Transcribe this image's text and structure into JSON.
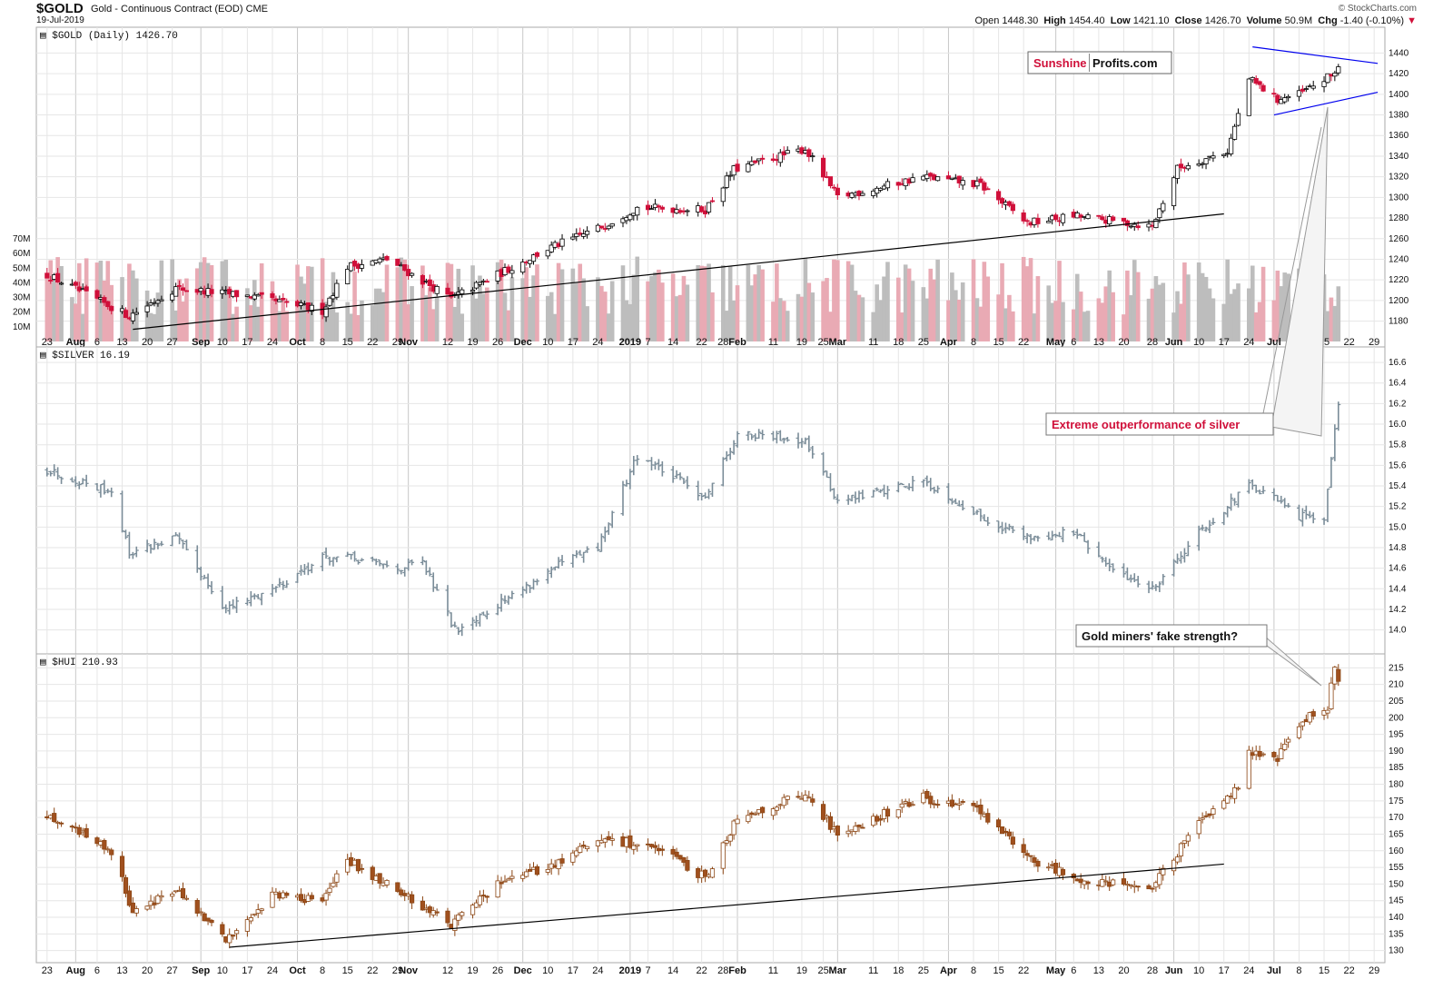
{
  "header": {
    "symbol": "$GOLD",
    "description": "Gold - Continuous Contract (EOD)  CME",
    "date": "19-Jul-2019",
    "brand": "© StockCharts.com",
    "open_label": "Open",
    "open": "1448.30",
    "high_label": "High",
    "high": "1454.40",
    "low_label": "Low",
    "low": "1421.10",
    "close_label": "Close",
    "close": "1426.70",
    "volume_label": "Volume",
    "volume": "50.9M",
    "chg_label": "Chg",
    "chg": "-1.40 (-0.10%)"
  },
  "logo": {
    "part1": "Sunshine",
    "part2": "Profits.com"
  },
  "annotations": {
    "silver": "Extreme outperformance of silver",
    "miners": "Gold miners' fake strength?"
  },
  "x_axis": {
    "labels": [
      {
        "t": "23",
        "bold": false
      },
      {
        "t": "Aug",
        "bold": true
      },
      {
        "t": "6",
        "bold": false
      },
      {
        "t": "13",
        "bold": false
      },
      {
        "t": "20",
        "bold": false
      },
      {
        "t": "27",
        "bold": false
      },
      {
        "t": "Sep",
        "bold": true
      },
      {
        "t": "10",
        "bold": false
      },
      {
        "t": "17",
        "bold": false
      },
      {
        "t": "24",
        "bold": false
      },
      {
        "t": "Oct",
        "bold": true
      },
      {
        "t": "8",
        "bold": false
      },
      {
        "t": "15",
        "bold": false
      },
      {
        "t": "22",
        "bold": false
      },
      {
        "t": "29",
        "bold": false
      },
      {
        "t": "Nov",
        "bold": true
      },
      {
        "t": "12",
        "bold": false
      },
      {
        "t": "19",
        "bold": false
      },
      {
        "t": "26",
        "bold": false
      },
      {
        "t": "Dec",
        "bold": true
      },
      {
        "t": "10",
        "bold": false
      },
      {
        "t": "17",
        "bold": false
      },
      {
        "t": "24",
        "bold": false
      },
      {
        "t": "2019",
        "bold": true
      },
      {
        "t": "7",
        "bold": false
      },
      {
        "t": "14",
        "bold": false
      },
      {
        "t": "22",
        "bold": false
      },
      {
        "t": "28",
        "bold": false
      },
      {
        "t": "Feb",
        "bold": true
      },
      {
        "t": "11",
        "bold": false
      },
      {
        "t": "19",
        "bold": false
      },
      {
        "t": "25",
        "bold": false
      },
      {
        "t": "Mar",
        "bold": true
      },
      {
        "t": "11",
        "bold": false
      },
      {
        "t": "18",
        "bold": false
      },
      {
        "t": "25",
        "bold": false
      },
      {
        "t": "Apr",
        "bold": true
      },
      {
        "t": "8",
        "bold": false
      },
      {
        "t": "15",
        "bold": false
      },
      {
        "t": "22",
        "bold": false
      },
      {
        "t": "May",
        "bold": true
      },
      {
        "t": "6",
        "bold": false
      },
      {
        "t": "13",
        "bold": false
      },
      {
        "t": "20",
        "bold": false
      },
      {
        "t": "28",
        "bold": false
      },
      {
        "t": "Jun",
        "bold": true
      },
      {
        "t": "10",
        "bold": false
      },
      {
        "t": "17",
        "bold": false
      },
      {
        "t": "24",
        "bold": false
      },
      {
        "t": "Jul",
        "bold": true
      },
      {
        "t": "8",
        "bold": false
      },
      {
        "t": "15",
        "bold": false
      },
      {
        "t": "22",
        "bold": false
      },
      {
        "t": "29",
        "bold": false
      }
    ]
  },
  "chart_data": [
    {
      "type": "candlestick",
      "title": "$GOLD (Daily) 1426.70",
      "last": 1426.7,
      "ylim": [
        1162,
        1458
      ],
      "y_ticks": [
        1180,
        1200,
        1220,
        1240,
        1260,
        1280,
        1300,
        1320,
        1340,
        1360,
        1380,
        1400,
        1420,
        1440
      ],
      "key_closes": [
        {
          "date": "2018-07-23",
          "v": 1225
        },
        {
          "date": "2018-08-15",
          "v": 1185
        },
        {
          "date": "2018-08-28",
          "v": 1212
        },
        {
          "date": "2018-09-18",
          "v": 1204
        },
        {
          "date": "2018-10-08",
          "v": 1190
        },
        {
          "date": "2018-10-15",
          "v": 1233
        },
        {
          "date": "2018-10-26",
          "v": 1240
        },
        {
          "date": "2018-11-13",
          "v": 1202
        },
        {
          "date": "2018-11-26",
          "v": 1225
        },
        {
          "date": "2018-12-10",
          "v": 1250
        },
        {
          "date": "2018-12-24",
          "v": 1270
        },
        {
          "date": "2019-01-04",
          "v": 1290
        },
        {
          "date": "2019-01-23",
          "v": 1288
        },
        {
          "date": "2019-01-31",
          "v": 1327
        },
        {
          "date": "2019-02-20",
          "v": 1347
        },
        {
          "date": "2019-03-01",
          "v": 1300
        },
        {
          "date": "2019-03-25",
          "v": 1320
        },
        {
          "date": "2019-04-10",
          "v": 1312
        },
        {
          "date": "2019-04-23",
          "v": 1275
        },
        {
          "date": "2019-05-06",
          "v": 1282
        },
        {
          "date": "2019-05-28",
          "v": 1272
        },
        {
          "date": "2019-06-04",
          "v": 1328
        },
        {
          "date": "2019-06-18",
          "v": 1345
        },
        {
          "date": "2019-06-24",
          "v": 1415
        },
        {
          "date": "2019-07-02",
          "v": 1395
        },
        {
          "date": "2019-07-08",
          "v": 1400
        },
        {
          "date": "2019-07-17",
          "v": 1418
        },
        {
          "date": "2019-07-19",
          "v": 1426.7
        }
      ],
      "volume_axis": {
        "labels": [
          "10M",
          "20M",
          "30M",
          "40M",
          "50M",
          "60M",
          "70M"
        ]
      },
      "volume": {
        "last": "50.9M",
        "range_M": [
          18,
          58
        ]
      },
      "trendlines": [
        {
          "from": {
            "date": "2018-08-16",
            "v": 1172
          },
          "to": {
            "date": "2019-06-17",
            "v": 1284
          },
          "color": "#000000"
        },
        {
          "from": {
            "date": "2019-06-25",
            "v": 1446
          },
          "to": {
            "date": "2019-07-30",
            "v": 1430
          },
          "color": "#0000ee"
        },
        {
          "from": {
            "date": "2019-07-01",
            "v": 1380
          },
          "to": {
            "date": "2019-07-30",
            "v": 1402
          },
          "color": "#0000ee"
        }
      ],
      "up_color": "#ffffff",
      "down_color": "#d0103a"
    },
    {
      "type": "ohlc",
      "title": "$SILVER 16.19",
      "last": 16.19,
      "ylim": [
        13.82,
        16.68
      ],
      "y_ticks": [
        14.0,
        14.2,
        14.4,
        14.6,
        14.8,
        15.0,
        15.2,
        15.4,
        15.6,
        15.8,
        16.0,
        16.2,
        16.4,
        16.6
      ],
      "key_closes": [
        {
          "date": "2018-07-23",
          "v": 15.55
        },
        {
          "date": "2018-08-10",
          "v": 15.35
        },
        {
          "date": "2018-08-15",
          "v": 14.75
        },
        {
          "date": "2018-08-28",
          "v": 14.9
        },
        {
          "date": "2018-09-11",
          "v": 14.2
        },
        {
          "date": "2018-09-24",
          "v": 14.4
        },
        {
          "date": "2018-10-08",
          "v": 14.7
        },
        {
          "date": "2018-10-15",
          "v": 14.7
        },
        {
          "date": "2018-10-29",
          "v": 14.6
        },
        {
          "date": "2018-11-05",
          "v": 14.65
        },
        {
          "date": "2018-11-14",
          "v": 14.0
        },
        {
          "date": "2018-12-03",
          "v": 14.4
        },
        {
          "date": "2018-12-14",
          "v": 14.65
        },
        {
          "date": "2018-12-24",
          "v": 14.8
        },
        {
          "date": "2019-01-04",
          "v": 15.7
        },
        {
          "date": "2019-01-23",
          "v": 15.3
        },
        {
          "date": "2019-02-01",
          "v": 15.9
        },
        {
          "date": "2019-02-20",
          "v": 15.85
        },
        {
          "date": "2019-03-01",
          "v": 15.25
        },
        {
          "date": "2019-03-25",
          "v": 15.45
        },
        {
          "date": "2019-04-10",
          "v": 15.1
        },
        {
          "date": "2019-04-23",
          "v": 14.9
        },
        {
          "date": "2019-05-06",
          "v": 14.95
        },
        {
          "date": "2019-05-16",
          "v": 14.6
        },
        {
          "date": "2019-05-28",
          "v": 14.4
        },
        {
          "date": "2019-06-10",
          "v": 14.95
        },
        {
          "date": "2019-06-24",
          "v": 15.4
        },
        {
          "date": "2019-07-02",
          "v": 15.25
        },
        {
          "date": "2019-07-08",
          "v": 15.1
        },
        {
          "date": "2019-07-15",
          "v": 15.1
        },
        {
          "date": "2019-07-17",
          "v": 15.7
        },
        {
          "date": "2019-07-19",
          "v": 16.19
        }
      ],
      "color": "#7a8c98"
    },
    {
      "type": "candlestick",
      "title": "$HUI 210.93",
      "last": 210.93,
      "ylim": [
        128,
        217
      ],
      "y_ticks": [
        130,
        135,
        140,
        145,
        150,
        155,
        160,
        165,
        170,
        175,
        180,
        185,
        190,
        195,
        200,
        205,
        210,
        215
      ],
      "key_closes": [
        {
          "date": "2018-07-23",
          "v": 171
        },
        {
          "date": "2018-08-10",
          "v": 160
        },
        {
          "date": "2018-08-16",
          "v": 142
        },
        {
          "date": "2018-08-28",
          "v": 148
        },
        {
          "date": "2018-09-11",
          "v": 133
        },
        {
          "date": "2018-09-24",
          "v": 147
        },
        {
          "date": "2018-10-08",
          "v": 145
        },
        {
          "date": "2018-10-15",
          "v": 157
        },
        {
          "date": "2018-10-29",
          "v": 148
        },
        {
          "date": "2018-11-13",
          "v": 138
        },
        {
          "date": "2018-11-26",
          "v": 150
        },
        {
          "date": "2018-12-10",
          "v": 155
        },
        {
          "date": "2018-12-24",
          "v": 163
        },
        {
          "date": "2019-01-07",
          "v": 162
        },
        {
          "date": "2019-01-23",
          "v": 152
        },
        {
          "date": "2019-02-01",
          "v": 170
        },
        {
          "date": "2019-02-20",
          "v": 177
        },
        {
          "date": "2019-03-01",
          "v": 165
        },
        {
          "date": "2019-03-25",
          "v": 176
        },
        {
          "date": "2019-04-10",
          "v": 172
        },
        {
          "date": "2019-04-23",
          "v": 158
        },
        {
          "date": "2019-05-06",
          "v": 152
        },
        {
          "date": "2019-05-28",
          "v": 149
        },
        {
          "date": "2019-06-10",
          "v": 168
        },
        {
          "date": "2019-06-21",
          "v": 180
        },
        {
          "date": "2019-06-24",
          "v": 190
        },
        {
          "date": "2019-07-02",
          "v": 188
        },
        {
          "date": "2019-07-10",
          "v": 200
        },
        {
          "date": "2019-07-16",
          "v": 203
        },
        {
          "date": "2019-07-18",
          "v": 215
        },
        {
          "date": "2019-07-19",
          "v": 210.93
        }
      ],
      "trendlines": [
        {
          "from": {
            "date": "2018-09-12",
            "v": 131
          },
          "to": {
            "date": "2019-06-17",
            "v": 156
          },
          "color": "#000000"
        }
      ],
      "up_color": "#ffffff",
      "down_color": "#a0501e",
      "outline_color": "#8b4513"
    }
  ]
}
